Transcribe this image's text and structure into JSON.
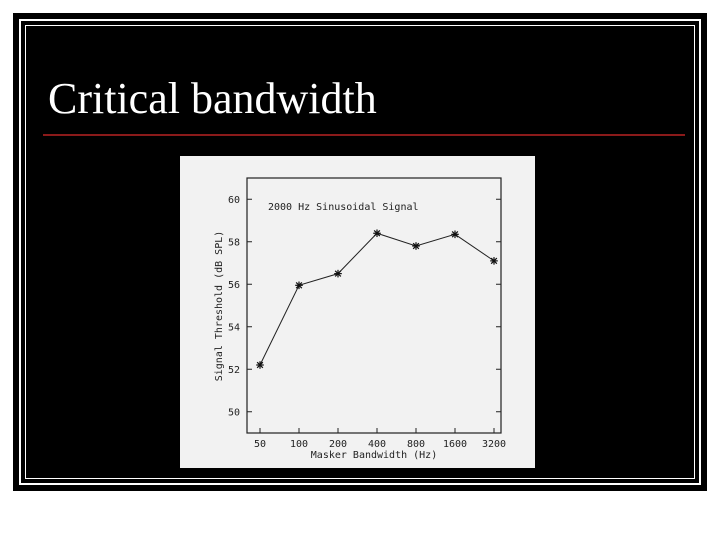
{
  "slide": {
    "title": "Critical bandwidth",
    "title_color": "#ffffff",
    "background": "#000000",
    "rule_color": "#8b1a1a"
  },
  "chart_data": {
    "type": "line",
    "title": "2000 Hz Sinusoidal Signal",
    "xlabel": "Masker Bandwidth (Hz)",
    "ylabel": "Signal Threshold (dB SPL)",
    "x_scale": "log",
    "categories": [
      "50",
      "100",
      "200",
      "400",
      "800",
      "1600",
      "3200"
    ],
    "x": [
      50,
      100,
      200,
      400,
      800,
      1600,
      3200
    ],
    "y": [
      52.2,
      55.95,
      56.5,
      58.4,
      57.8,
      58.35,
      57.1
    ],
    "ylim": [
      49,
      61
    ],
    "yticks": [
      50,
      52,
      54,
      56,
      58,
      60
    ],
    "ytick_labels": [
      "50",
      "52",
      "54",
      "56",
      "58",
      "60"
    ],
    "marker": "asterisk",
    "grid": false,
    "legend": "none"
  }
}
